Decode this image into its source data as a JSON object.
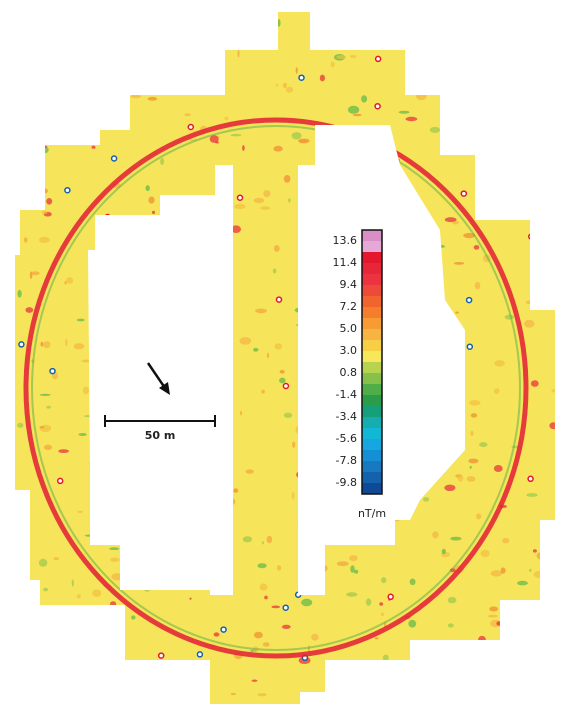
{
  "legend": {
    "labels": [
      "13.6",
      "11.4",
      "9.4",
      "7.2",
      "5.0",
      "3.0",
      "0.8",
      "-1.4",
      "-3.4",
      "-5.6",
      "-7.8",
      "-9.8"
    ],
    "colors": [
      "#d98fc6",
      "#e6a8d7",
      "#e4172d",
      "#e8263a",
      "#ec3440",
      "#ee4a3a",
      "#f2642e",
      "#f47e2c",
      "#f79b34",
      "#f8b443",
      "#f6cf45",
      "#f6e85a",
      "#b8d34e",
      "#86c24b",
      "#4fae47",
      "#2a9c4a",
      "#15a07a",
      "#16adb0",
      "#13b7d6",
      "#16a6e0",
      "#1590d4",
      "#1878c2",
      "#1461ac",
      "#0e4a96"
    ],
    "unit": "nT/m"
  },
  "scale_bar": {
    "label": "50 m"
  }
}
